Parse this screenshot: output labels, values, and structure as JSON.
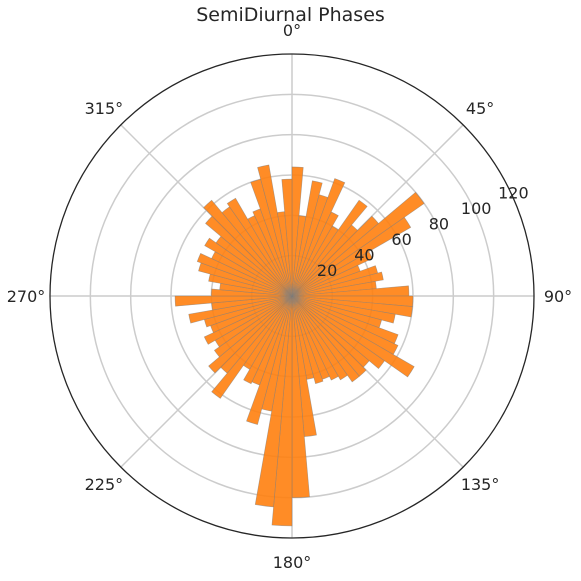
{
  "chart_data": {
    "type": "polar-bar",
    "title": "SemiDiurnal Phases",
    "theta_direction": "clockwise",
    "theta_zero": "top",
    "bin_width_deg": 5,
    "angle_ticks": [
      "0°",
      "45°",
      "90°",
      "135°",
      "180°",
      "225°",
      "270°",
      "315°"
    ],
    "radial_ticks": [
      "20",
      "40",
      "60",
      "80",
      "100",
      "120"
    ],
    "rmax": 120,
    "grid": true,
    "bar_color": "#ff7f0e",
    "bins_deg": [
      0,
      5,
      10,
      15,
      20,
      25,
      30,
      35,
      40,
      45,
      50,
      55,
      60,
      65,
      70,
      75,
      80,
      85,
      90,
      95,
      100,
      105,
      110,
      115,
      120,
      125,
      130,
      135,
      140,
      145,
      150,
      155,
      160,
      165,
      170,
      175,
      180,
      185,
      190,
      195,
      200,
      205,
      210,
      215,
      220,
      225,
      230,
      235,
      240,
      245,
      250,
      255,
      260,
      265,
      270,
      275,
      280,
      285,
      290,
      295,
      300,
      305,
      310,
      315,
      320,
      325,
      330,
      335,
      340,
      345,
      350,
      355
    ],
    "values": [
      64,
      40,
      58,
      52,
      62,
      46,
      40,
      58,
      46,
      56,
      80,
      68,
      44,
      36,
      44,
      46,
      42,
      58,
      60,
      60,
      52,
      46,
      56,
      58,
      70,
      56,
      50,
      52,
      52,
      48,
      46,
      44,
      45,
      42,
      70,
      100,
      114,
      105,
      58,
      66,
      47,
      48,
      42,
      62,
      50,
      54,
      47,
      44,
      48,
      43,
      45,
      52,
      40,
      58,
      40,
      36,
      42,
      48,
      50,
      44,
      50,
      46,
      56,
      62,
      54,
      56,
      44,
      46,
      60,
      66,
      42,
      58
    ]
  }
}
